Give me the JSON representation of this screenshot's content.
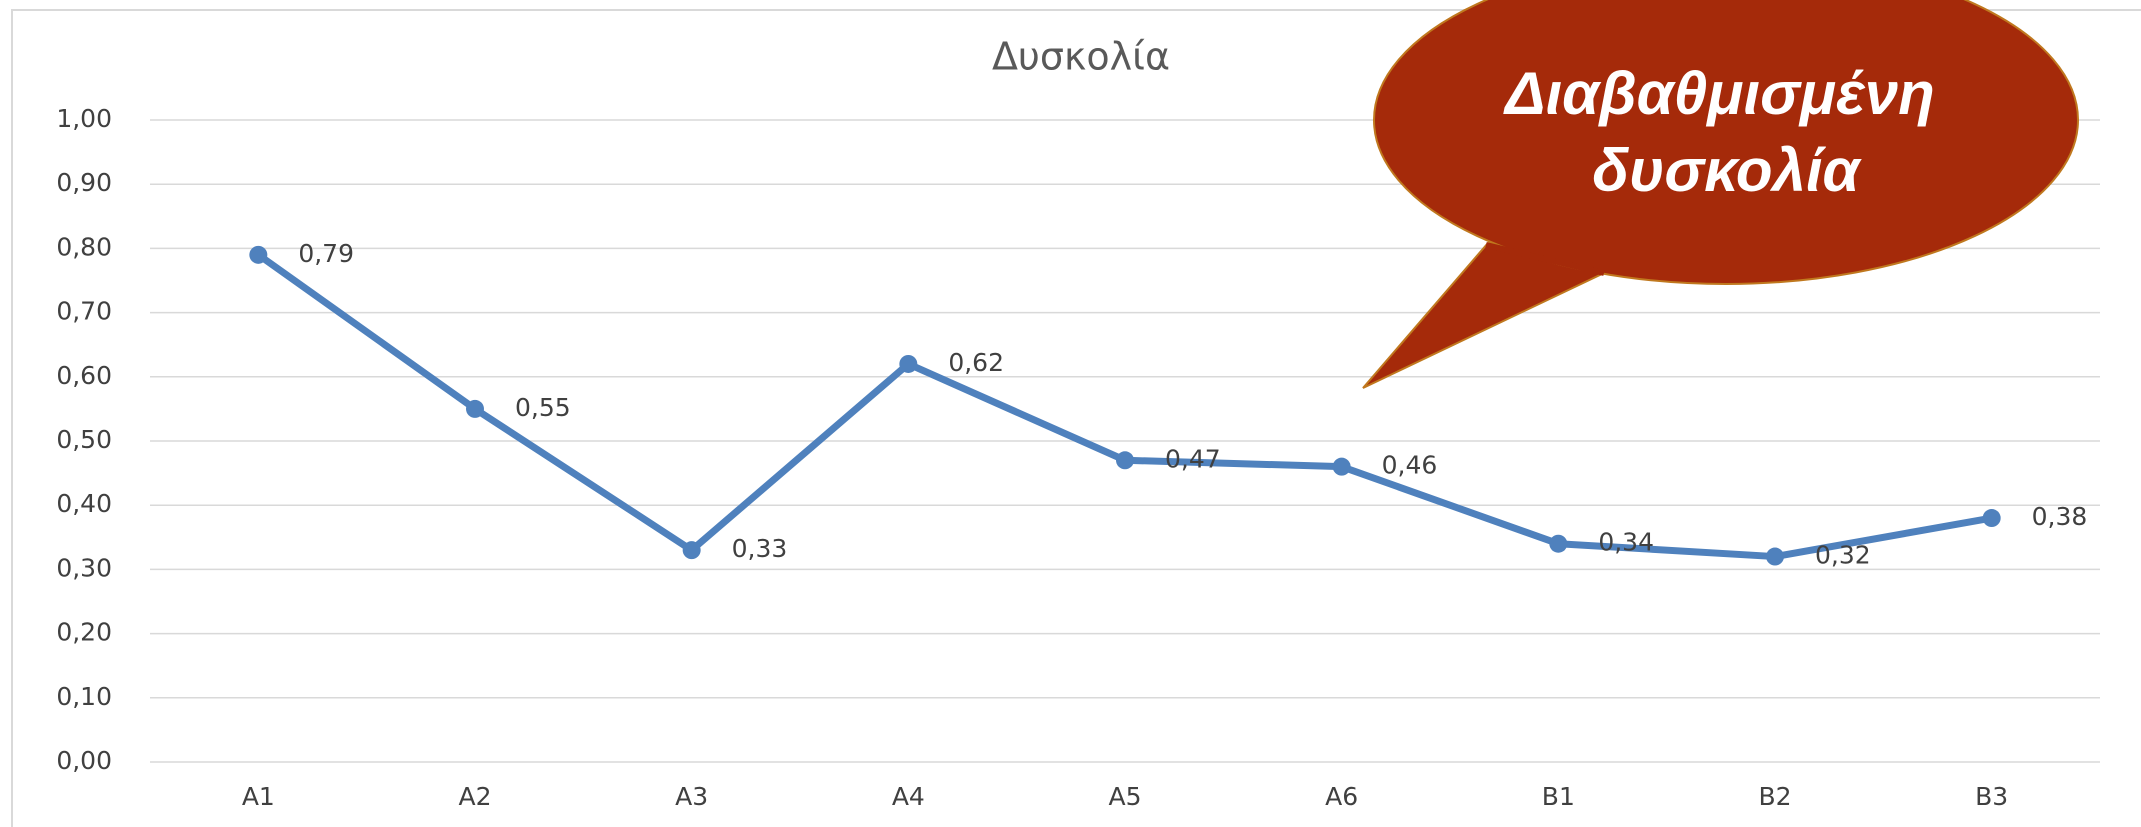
{
  "chart_data": {
    "type": "line",
    "title": "Δυσκολία",
    "categories": [
      "A1",
      "A2",
      "A3",
      "A4",
      "A5",
      "A6",
      "B1",
      "B2",
      "B3"
    ],
    "series": [
      {
        "name": "Δυσκολία",
        "color": "#4f81bd",
        "values": [
          0.79,
          0.55,
          0.33,
          0.62,
          0.47,
          0.46,
          0.34,
          0.32,
          0.38
        ],
        "value_labels": [
          "0,79",
          "0,55",
          "0,33",
          "0,62",
          "0,47",
          "0,46",
          "0,34",
          "0,32",
          "0,38"
        ]
      }
    ],
    "ylim": [
      0,
      1
    ],
    "yticks": [
      {
        "value": 0,
        "label": "0,00"
      },
      {
        "value": 0.1,
        "label": "0,10"
      },
      {
        "value": 0.2,
        "label": "0,20"
      },
      {
        "value": 0.3,
        "label": "0,30"
      },
      {
        "value": 0.4,
        "label": "0,40"
      },
      {
        "value": 0.5,
        "label": "0,50"
      },
      {
        "value": 0.6,
        "label": "0,60"
      },
      {
        "value": 0.7,
        "label": "0,70"
      },
      {
        "value": 0.8,
        "label": "0,80"
      },
      {
        "value": 0.9,
        "label": "0,90"
      },
      {
        "value": 1,
        "label": "1,00"
      }
    ],
    "grid": true,
    "annotation": [
      "Διαβαθμισμένη",
      "δυσκολία"
    ]
  }
}
